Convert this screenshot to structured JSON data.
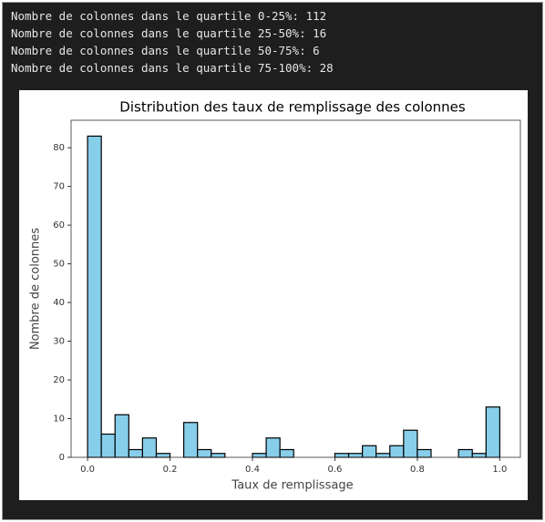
{
  "output_lines": [
    "Nombre de colonnes dans le quartile 0-25%: 112",
    "Nombre de colonnes dans le quartile 25-50%: 16",
    "Nombre de colonnes dans le quartile 50-75%: 6",
    "Nombre de colonnes dans le quartile 75-100%: 28"
  ],
  "chart_data": {
    "type": "histogram",
    "title": "Distribution des taux de remplissage des colonnes",
    "x_label": "Taux de remplissage",
    "y_label": "Nombre de colonnes",
    "bins": [
      0,
      0.03333,
      0.06667,
      0.1,
      0.13333,
      0.16667,
      0.2,
      0.23333,
      0.26667,
      0.3,
      0.33333,
      0.36667,
      0.4,
      0.43333,
      0.46667,
      0.5,
      0.53333,
      0.56667,
      0.6,
      0.63333,
      0.66667,
      0.7,
      0.73333,
      0.76667,
      0.8,
      0.83333,
      0.86667,
      0.9,
      0.93333,
      0.96667,
      1
    ],
    "values": [
      83,
      6,
      11,
      2,
      5,
      1,
      0,
      9,
      2,
      1,
      0,
      0,
      1,
      5,
      2,
      0,
      0,
      0,
      1,
      1,
      3,
      1,
      3,
      7,
      2,
      0,
      0,
      2,
      1,
      13
    ],
    "color": "#87ceeb",
    "edgecolor": "#000000",
    "xlim": [
      -0.04,
      1.05
    ],
    "xticks": [
      {
        "value": 0,
        "label": "0.0"
      },
      0.2,
      0.4,
      0.6,
      0.8,
      {
        "value": 1,
        "label": "1.0"
      }
    ],
    "ylim": [
      0,
      87.1
    ],
    "yticks": [
      0,
      10,
      20,
      30,
      40,
      50,
      60,
      70,
      80
    ]
  }
}
